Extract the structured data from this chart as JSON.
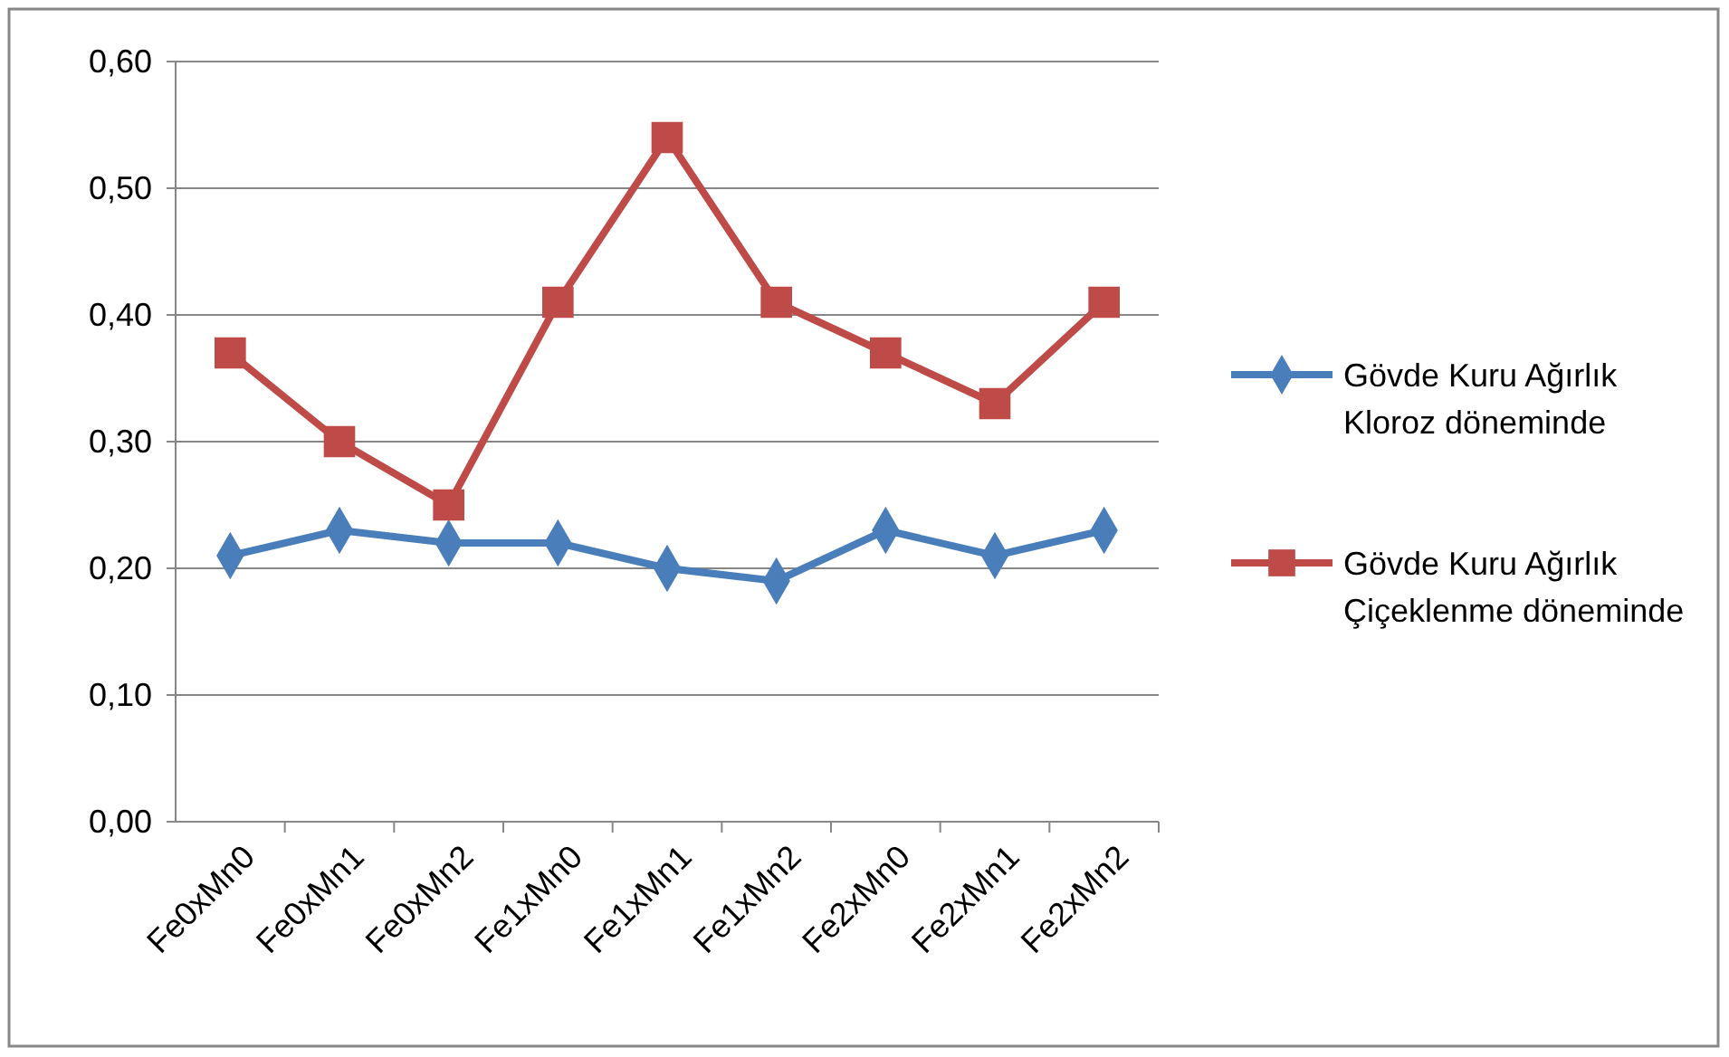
{
  "chart_data": {
    "type": "line",
    "categories": [
      "Fe0xMn0",
      "Fe0xMn1",
      "Fe0xMn2",
      "Fe1xMn0",
      "Fe1xMn1",
      "Fe1xMn2",
      "Fe2xMn0",
      "Fe2xMn1",
      "Fe2xMn2"
    ],
    "series": [
      {
        "name": "Gövde Kuru Ağırlık Kloroz döneminde",
        "color": "#4a7ebb",
        "marker": "diamond",
        "values": [
          0.21,
          0.23,
          0.22,
          0.22,
          0.2,
          0.19,
          0.23,
          0.21,
          0.23
        ]
      },
      {
        "name": "Gövde Kuru Ağırlık Çiçeklenme döneminde",
        "color": "#be4b48",
        "marker": "square",
        "values": [
          0.37,
          0.3,
          0.25,
          0.41,
          0.54,
          0.41,
          0.37,
          0.33,
          0.41
        ]
      }
    ],
    "ylim": [
      0,
      0.6
    ],
    "yticks": [
      {
        "value": 0,
        "label": "0,00"
      },
      {
        "value": 0.1,
        "label": "0,10"
      },
      {
        "value": 0.2,
        "label": "0,20"
      },
      {
        "value": 0.3,
        "label": "0,30"
      },
      {
        "value": 0.4,
        "label": "0,40"
      },
      {
        "value": 0.5,
        "label": "0,50"
      },
      {
        "value": 0.6,
        "label": "0,60"
      }
    ],
    "grid": "y",
    "legend": "right",
    "line_style": "solid"
  }
}
